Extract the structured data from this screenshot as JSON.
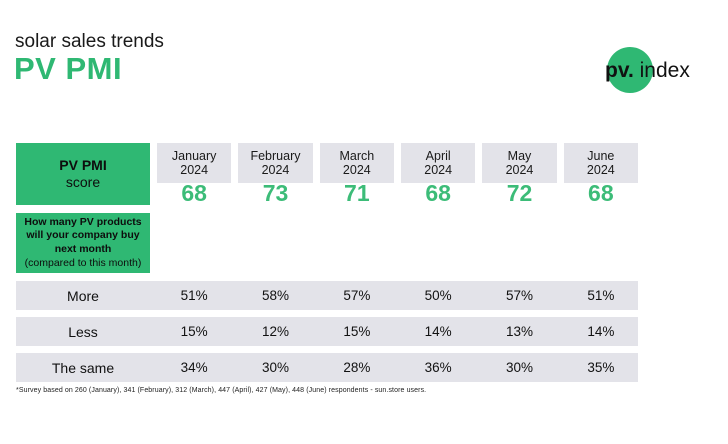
{
  "header": {
    "subtitle": "solar sales trends",
    "title": "PV PMI",
    "logo": {
      "pv": "pv.",
      "index": "index"
    }
  },
  "table": {
    "score_label_bold": "PV PMI",
    "score_label_sub": "score",
    "question_bold": "How many PV products will your company buy next month",
    "question_note": "(compared to this month)",
    "months": [
      {
        "name": "January",
        "year": "2024"
      },
      {
        "name": "February",
        "year": "2024"
      },
      {
        "name": "March",
        "year": "2024"
      },
      {
        "name": "April",
        "year": "2024"
      },
      {
        "name": "May",
        "year": "2024"
      },
      {
        "name": "June",
        "year": "2024"
      }
    ],
    "scores": [
      "68",
      "73",
      "71",
      "68",
      "72",
      "68"
    ],
    "rows": [
      {
        "label": "More",
        "values": [
          "51%",
          "58%",
          "57%",
          "50%",
          "57%",
          "51%"
        ]
      },
      {
        "label": "Less",
        "values": [
          "15%",
          "12%",
          "15%",
          "14%",
          "13%",
          "14%"
        ]
      },
      {
        "label": "The same",
        "values": [
          "34%",
          "30%",
          "28%",
          "36%",
          "30%",
          "35%"
        ]
      }
    ]
  },
  "footnote": "*Survey based on 260 (January), 341 (February), 312 (March), 447 (April), 427 (May), 448 (June) respondents - sun.store users.",
  "colors": {
    "brand_green": "#2fb873",
    "score_green": "#3cbc78",
    "row_gray": "#e3e3e9"
  },
  "chart_data": {
    "type": "table",
    "title": "PV PMI",
    "subtitle": "solar sales trends",
    "columns": [
      "January 2024",
      "February 2024",
      "March 2024",
      "April 2024",
      "May 2024",
      "June 2024"
    ],
    "rows": [
      {
        "label": "PV PMI score",
        "values": [
          68,
          73,
          71,
          68,
          72,
          68
        ]
      },
      {
        "label": "More",
        "values": [
          "51%",
          "58%",
          "57%",
          "50%",
          "57%",
          "51%"
        ]
      },
      {
        "label": "Less",
        "values": [
          "15%",
          "12%",
          "15%",
          "14%",
          "13%",
          "14%"
        ]
      },
      {
        "label": "The same",
        "values": [
          "34%",
          "30%",
          "28%",
          "36%",
          "30%",
          "35%"
        ]
      }
    ],
    "question": "How many PV products will your company buy next month (compared to this month)",
    "footnote": "*Survey based on 260 (January), 341 (February), 312 (March), 447 (April), 427 (May), 448 (June) respondents - sun.store users."
  }
}
